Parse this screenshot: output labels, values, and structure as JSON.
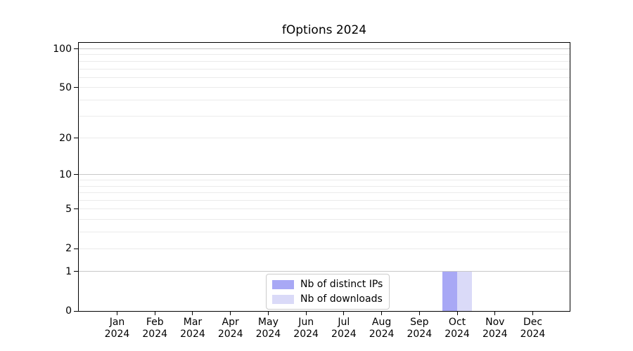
{
  "title": "fOptions 2024",
  "legend": {
    "items": [
      {
        "label": "Nb of distinct IPs",
        "color": "#a8a8f5"
      },
      {
        "label": "Nb of downloads",
        "color": "#dadaf8"
      }
    ]
  },
  "chart_data": {
    "type": "bar",
    "title": "fOptions 2024",
    "categories": [
      "Jan 2024",
      "Feb 2024",
      "Mar 2024",
      "Apr 2024",
      "May 2024",
      "Jun 2024",
      "Jul 2024",
      "Aug 2024",
      "Sep 2024",
      "Oct 2024",
      "Nov 2024",
      "Dec 2024"
    ],
    "months": [
      "Jan",
      "Feb",
      "Mar",
      "Apr",
      "May",
      "Jun",
      "Jul",
      "Aug",
      "Sep",
      "Oct",
      "Nov",
      "Dec"
    ],
    "year_label": "2024",
    "series": [
      {
        "name": "Nb of distinct IPs",
        "color": "#a8a8f5",
        "values": [
          0,
          0,
          0,
          0,
          0,
          0,
          0,
          0,
          0,
          1,
          0,
          0
        ]
      },
      {
        "name": "Nb of downloads",
        "color": "#dadaf8",
        "values": [
          0,
          0,
          0,
          0,
          0,
          0,
          0,
          0,
          0,
          1,
          0,
          0
        ]
      }
    ],
    "xlabel": "",
    "ylabel": "",
    "y_axis": {
      "scale": "log10(x+1)",
      "ylim": [
        0,
        100
      ],
      "tick_values": [
        0,
        1,
        2,
        5,
        10,
        20,
        50,
        100
      ],
      "tick_labels": [
        "0",
        "1",
        "2",
        "5",
        "10",
        "20",
        "50",
        "100"
      ],
      "major_gridlines": [
        1,
        10,
        100
      ],
      "minor_gridlines": [
        2,
        3,
        4,
        5,
        6,
        7,
        8,
        9,
        20,
        30,
        40,
        50,
        60,
        70,
        80,
        90
      ]
    },
    "grid": true,
    "legend_position": "bottom-center-inside"
  }
}
